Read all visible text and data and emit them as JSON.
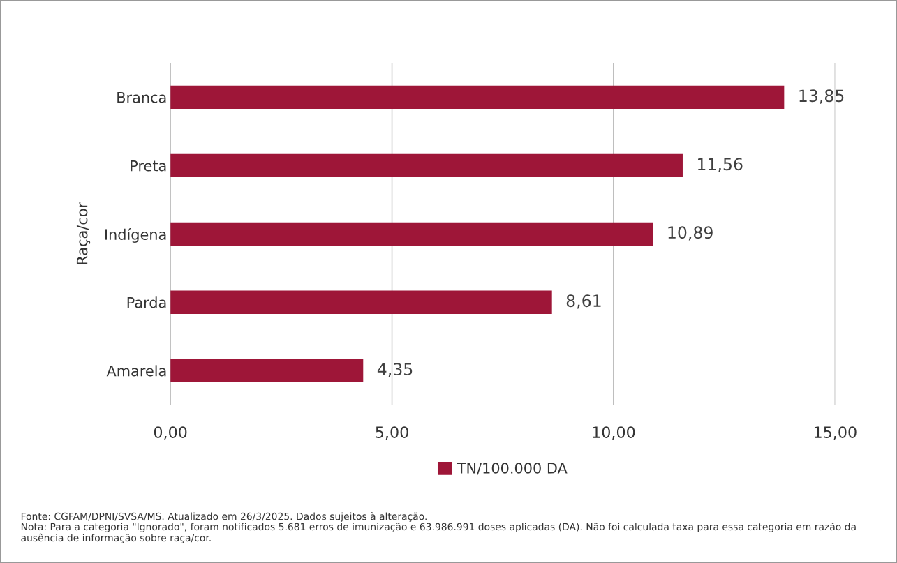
{
  "chart_data": {
    "type": "bar",
    "orientation": "horizontal",
    "ylabel": "Raça/cor",
    "categories": [
      "Branca",
      "Preta",
      "Indígena",
      "Parda",
      "Amarela"
    ],
    "series": [
      {
        "name": "TN/100.000 DA",
        "color": "#9e1638",
        "values": [
          13.85,
          11.56,
          10.89,
          8.61,
          4.35
        ],
        "value_labels": [
          "13,85",
          "11,56",
          "10,89",
          "8,61",
          "4,35"
        ]
      }
    ],
    "xlim": [
      0,
      15
    ],
    "xticks": [
      {
        "value": 0,
        "label": "0,00"
      },
      {
        "value": 5,
        "label": "5,00"
      },
      {
        "value": 10,
        "label": "10,00"
      },
      {
        "value": 15,
        "label": "15,00"
      }
    ],
    "grid": "x",
    "legend": "bottom",
    "annotations": [
      "Fonte: CGFAM/DPNI/SVSA/MS. Atualizado em 26/3/2025. Dados sujeitos à alteração.",
      "Nota: Para a categoria \"Ignorado\", foram notificados 5.681 erros de imunização e 63.986.991 doses aplicadas (DA). Não foi calculada taxa para essa categoria em razão da ausência de informação sobre raça/cor."
    ]
  }
}
